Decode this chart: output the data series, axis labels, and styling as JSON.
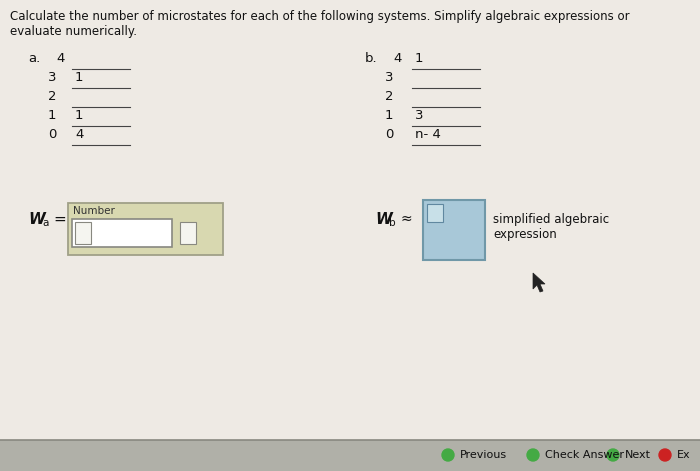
{
  "bg_color": "#eeeae4",
  "title_text": "Calculate the number of microstates for each of the following systems. Simplify algebraic expressions or\nevaluate numerically.",
  "title_fontsize": 8.5,
  "title_color": "#111111",
  "part_a_label": "a.",
  "part_b_label": "b.",
  "part_a_levels": [
    {
      "level": "4",
      "value": ""
    },
    {
      "level": "3",
      "value": "1"
    },
    {
      "level": "2",
      "value": ""
    },
    {
      "level": "1",
      "value": "1"
    },
    {
      "level": "0",
      "value": "4"
    }
  ],
  "part_b_levels": [
    {
      "level": "4",
      "value": "1"
    },
    {
      "level": "3",
      "value": ""
    },
    {
      "level": "2",
      "value": ""
    },
    {
      "level": "1",
      "value": "3"
    },
    {
      "level": "0",
      "value": "n- 4"
    }
  ],
  "wa_label": "W",
  "wa_subscript": "a",
  "wa_equals": "=",
  "wb_label": "W",
  "wb_subscript": "b",
  "wb_approx": "≈",
  "number_label": "Number",
  "simplified_label": "simplified algebraic\nexpression",
  "footer_bg": "#b0b0a8",
  "box_outer_color": "#d8d8b0",
  "box_outer_edge": "#a0a088",
  "box_inner_color": "#ffffff",
  "box_inner_edge": "#888880",
  "box_blue_color": "#a8c8d8",
  "box_blue_edge": "#7098a8",
  "box_blue_inner": "#c8e0e8",
  "cursor_color": "#222222"
}
